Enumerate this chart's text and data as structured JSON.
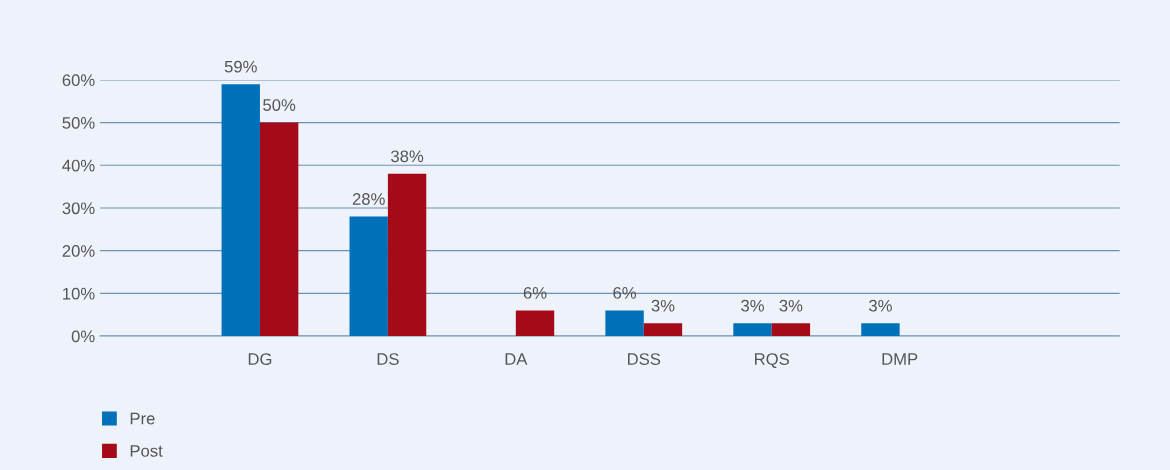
{
  "chart_data": {
    "type": "bar",
    "categories": [
      "DG",
      "DS",
      "DA",
      "DSS",
      "RQS",
      "DMP"
    ],
    "series": [
      {
        "name": "Pre",
        "color": "#0070b8",
        "values": [
          59,
          28,
          null,
          6,
          3,
          3
        ],
        "value_labels": [
          "59%",
          "28%",
          null,
          "6%",
          "3%",
          "3%"
        ]
      },
      {
        "name": "Post",
        "color": "#a50a18",
        "values": [
          50,
          38,
          6,
          3,
          3,
          null
        ],
        "value_labels": [
          "50%",
          "38%",
          "6%",
          "3%",
          "3%",
          null
        ]
      }
    ],
    "ylim": [
      0,
      60
    ],
    "yticks": [
      {
        "value": 0,
        "label": "0%"
      },
      {
        "value": 10,
        "label": "10%"
      },
      {
        "value": 20,
        "label": "20%"
      },
      {
        "value": 30,
        "label": "30%"
      },
      {
        "value": 40,
        "label": "40%"
      },
      {
        "value": 50,
        "label": "50%"
      },
      {
        "value": 60,
        "label": "60%"
      }
    ],
    "grid": "y",
    "legend": "bottom left"
  }
}
